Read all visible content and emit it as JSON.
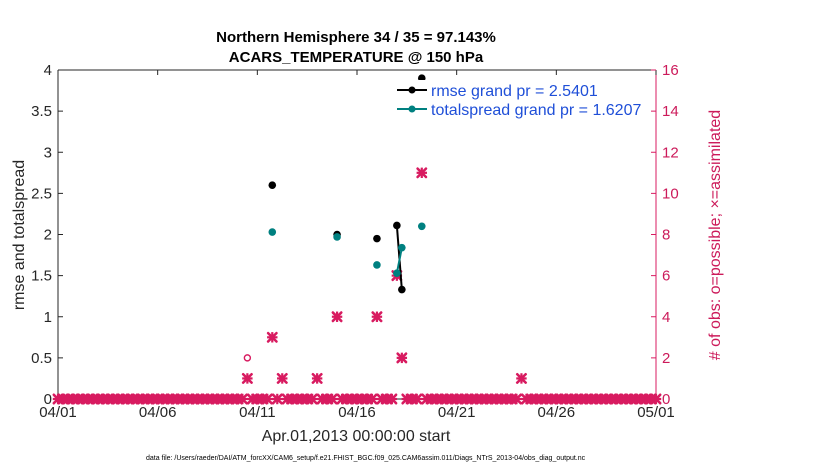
{
  "chart_data": {
    "type": "scatter",
    "title_line1": "Northern Hemisphere 34 / 35 = 97.143%",
    "title_line2": "ACARS_TEMPERATURE @ 150 hPa",
    "xlabel": "Apr.01,2013 00:00:00 start",
    "ylabel_left": "rmse and totalspread",
    "ylabel_right": "# of obs: o=possible; ×=assimilated",
    "footnote": "data file: /Users/raeder/DAI/ATM_forcXX/CAM6_setup/f.e21.FHIST_BGC.f09_025.CAM6assim.011/Diags_NTrS_2013-04/obs_diag_output.nc",
    "xlim": [
      1,
      31
    ],
    "ylim_left": [
      0,
      4
    ],
    "ylim_right": [
      0,
      16
    ],
    "x_ticks": [
      1,
      6,
      11,
      16,
      21,
      26,
      31
    ],
    "x_tick_labels": [
      "04/01",
      "04/06",
      "04/11",
      "04/16",
      "04/21",
      "04/26",
      "05/01"
    ],
    "y_ticks_left": [
      0,
      0.5,
      1,
      1.5,
      2,
      2.5,
      3,
      3.5,
      4
    ],
    "y_tick_labels_left": [
      "0",
      "0.5",
      "1",
      "1.5",
      "2",
      "2.5",
      "3",
      "3.5",
      "4"
    ],
    "y_ticks_right": [
      0,
      2,
      4,
      6,
      8,
      10,
      12,
      14,
      16
    ],
    "y_tick_labels_right": [
      "0",
      "2",
      "4",
      "6",
      "8",
      "10",
      "12",
      "14",
      "16"
    ],
    "colors": {
      "rmse": "#000000",
      "spread": "#008080",
      "obs": "#d81b60",
      "legend_text": "#1f4fd8",
      "axis": "#262626"
    },
    "series": [
      {
        "name": "rmse grand pr = 2.5401",
        "axis": "left",
        "points": [
          {
            "x": 11.75,
            "y": 2.6
          },
          {
            "x": 15.0,
            "y": 2.0
          },
          {
            "x": 17.0,
            "y": 1.95
          },
          {
            "x": 18.0,
            "y": 2.11
          },
          {
            "x": 18.25,
            "y": 1.33
          },
          {
            "x": 19.25,
            "y": 3.9
          }
        ],
        "line_segments": [
          [
            3,
            4
          ]
        ]
      },
      {
        "name": "totalspread grand pr = 1.6207",
        "axis": "left",
        "points": [
          {
            "x": 11.75,
            "y": 2.03
          },
          {
            "x": 15.0,
            "y": 1.97
          },
          {
            "x": 17.0,
            "y": 1.63
          },
          {
            "x": 18.0,
            "y": 1.53
          },
          {
            "x": 18.25,
            "y": 1.84
          },
          {
            "x": 19.25,
            "y": 2.1
          }
        ],
        "line_segments": [
          [
            3,
            4
          ]
        ]
      }
    ],
    "obs_possible": [
      {
        "x": 10.5,
        "y": 2
      }
    ],
    "obs_assimilated_nonzero": [
      {
        "x": 10.5,
        "y": 1
      },
      {
        "x": 11.75,
        "y": 3
      },
      {
        "x": 12.25,
        "y": 1
      },
      {
        "x": 14.0,
        "y": 1
      },
      {
        "x": 15.0,
        "y": 4
      },
      {
        "x": 17.0,
        "y": 4
      },
      {
        "x": 18.0,
        "y": 6
      },
      {
        "x": 18.25,
        "y": 2
      },
      {
        "x": 19.25,
        "y": 11
      },
      {
        "x": 24.25,
        "y": 1
      }
    ],
    "obs_zero_step_days": 0.25
  }
}
